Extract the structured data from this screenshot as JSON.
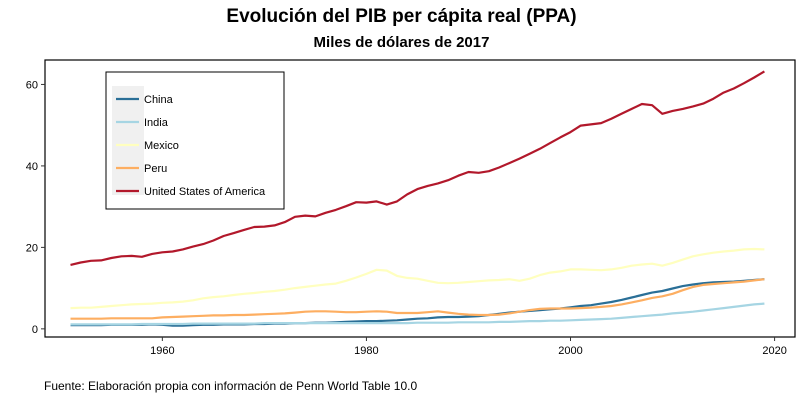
{
  "title": "Evolución del PIB per cápita real (PPA)",
  "subtitle": "Miles de dólares de 2017",
  "caption": "Fuente: Elaboración propia con información de Penn World Table 10.0",
  "chart_data": {
    "type": "line",
    "title": "Evolución del PIB per cápita real (PPA)",
    "subtitle": "Miles de dólares de 2017",
    "xlabel": "",
    "ylabel": "",
    "xlim": [
      1948.5,
      2022
    ],
    "ylim": [
      -2,
      66
    ],
    "x_ticks": [
      1960,
      1980,
      2000,
      2020
    ],
    "y_ticks": [
      0,
      20,
      40,
      60
    ],
    "grid": false,
    "legend_position": "top-left",
    "x": [
      1951,
      1952,
      1953,
      1954,
      1955,
      1956,
      1957,
      1958,
      1959,
      1960,
      1961,
      1962,
      1963,
      1964,
      1965,
      1966,
      1967,
      1968,
      1969,
      1970,
      1971,
      1972,
      1973,
      1974,
      1975,
      1976,
      1977,
      1978,
      1979,
      1980,
      1981,
      1982,
      1983,
      1984,
      1985,
      1986,
      1987,
      1988,
      1989,
      1990,
      1991,
      1992,
      1993,
      1994,
      1995,
      1996,
      1997,
      1998,
      1999,
      2000,
      2001,
      2002,
      2003,
      2004,
      2005,
      2006,
      2007,
      2008,
      2009,
      2010,
      2011,
      2012,
      2013,
      2014,
      2015,
      2016,
      2017,
      2018,
      2019
    ],
    "series": [
      {
        "name": "China",
        "color": "#2a6f97",
        "values": [
          0.9,
          0.9,
          0.9,
          0.9,
          1.0,
          1.0,
          1.0,
          1.0,
          1.1,
          1.0,
          0.8,
          0.8,
          0.9,
          1.0,
          1.0,
          1.1,
          1.1,
          1.1,
          1.2,
          1.2,
          1.3,
          1.3,
          1.4,
          1.4,
          1.5,
          1.5,
          1.6,
          1.7,
          1.8,
          1.9,
          1.9,
          2.0,
          2.1,
          2.3,
          2.5,
          2.6,
          2.8,
          2.9,
          2.9,
          3.0,
          3.1,
          3.4,
          3.7,
          4.0,
          4.2,
          4.4,
          4.6,
          4.8,
          5.0,
          5.3,
          5.6,
          5.8,
          6.2,
          6.6,
          7.1,
          7.7,
          8.3,
          8.9,
          9.3,
          9.9,
          10.5,
          10.9,
          11.2,
          11.4,
          11.5,
          11.6,
          11.8,
          12.0,
          12.2
        ]
      },
      {
        "name": "India",
        "color": "#a6d5e3",
        "values": [
          1.1,
          1.1,
          1.1,
          1.1,
          1.1,
          1.1,
          1.1,
          1.2,
          1.2,
          1.2,
          1.2,
          1.2,
          1.3,
          1.3,
          1.3,
          1.3,
          1.3,
          1.3,
          1.3,
          1.4,
          1.4,
          1.4,
          1.4,
          1.4,
          1.4,
          1.4,
          1.4,
          1.4,
          1.4,
          1.4,
          1.4,
          1.4,
          1.4,
          1.4,
          1.5,
          1.5,
          1.5,
          1.5,
          1.6,
          1.6,
          1.6,
          1.6,
          1.7,
          1.7,
          1.8,
          1.9,
          1.9,
          2.0,
          2.0,
          2.1,
          2.2,
          2.3,
          2.4,
          2.5,
          2.7,
          2.9,
          3.1,
          3.3,
          3.5,
          3.8,
          4.0,
          4.2,
          4.5,
          4.8,
          5.1,
          5.4,
          5.7,
          6.0,
          6.2
        ]
      },
      {
        "name": "Mexico",
        "color": "#ffffbf",
        "values": [
          5.1,
          5.2,
          5.2,
          5.4,
          5.6,
          5.8,
          6.0,
          6.1,
          6.2,
          6.4,
          6.5,
          6.7,
          7.0,
          7.5,
          7.8,
          8.0,
          8.3,
          8.6,
          8.8,
          9.1,
          9.3,
          9.6,
          10.0,
          10.3,
          10.6,
          10.9,
          11.1,
          11.8,
          12.6,
          13.5,
          14.5,
          14.3,
          13.0,
          12.5,
          12.3,
          11.8,
          11.3,
          11.2,
          11.3,
          11.5,
          11.7,
          11.9,
          12.0,
          12.2,
          11.8,
          12.3,
          13.2,
          13.8,
          14.1,
          14.6,
          14.6,
          14.5,
          14.4,
          14.6,
          15.0,
          15.5,
          15.8,
          16.0,
          15.5,
          16.2,
          17.0,
          17.8,
          18.3,
          18.7,
          19.0,
          19.2,
          19.5,
          19.6,
          19.5
        ]
      },
      {
        "name": "Peru",
        "color": "#fdae61",
        "values": [
          2.5,
          2.5,
          2.5,
          2.5,
          2.6,
          2.6,
          2.6,
          2.6,
          2.6,
          2.8,
          2.9,
          3.0,
          3.1,
          3.2,
          3.3,
          3.3,
          3.4,
          3.4,
          3.5,
          3.6,
          3.7,
          3.8,
          4.0,
          4.2,
          4.3,
          4.3,
          4.2,
          4.1,
          4.1,
          4.2,
          4.3,
          4.2,
          3.9,
          3.9,
          3.9,
          4.1,
          4.3,
          4.0,
          3.7,
          3.5,
          3.4,
          3.4,
          3.5,
          3.8,
          4.2,
          4.6,
          4.9,
          5.0,
          5.0,
          5.0,
          5.1,
          5.2,
          5.4,
          5.6,
          6.0,
          6.5,
          7.0,
          7.6,
          8.0,
          8.6,
          9.5,
          10.3,
          10.8,
          11.0,
          11.2,
          11.4,
          11.6,
          11.9,
          12.2
        ]
      },
      {
        "name": "United States of America",
        "color": "#b2182b",
        "values": [
          15.7,
          16.3,
          16.7,
          16.8,
          17.4,
          17.8,
          17.9,
          17.7,
          18.4,
          18.8,
          19.0,
          19.5,
          20.2,
          20.8,
          21.7,
          22.8,
          23.5,
          24.3,
          25.0,
          25.1,
          25.4,
          26.2,
          27.5,
          27.8,
          27.6,
          28.5,
          29.2,
          30.1,
          31.1,
          31.0,
          31.3,
          30.5,
          31.3,
          33.0,
          34.3,
          35.1,
          35.7,
          36.5,
          37.6,
          38.5,
          38.3,
          38.7,
          39.6,
          40.7,
          41.8,
          43.0,
          44.2,
          45.6,
          47.0,
          48.3,
          49.9,
          50.2,
          50.5,
          51.6,
          52.8,
          54.0,
          55.2,
          54.9,
          52.8,
          53.5,
          54.0,
          54.6,
          55.3,
          56.5,
          58.0,
          59.0,
          60.3,
          61.7,
          63.2
        ]
      }
    ]
  }
}
